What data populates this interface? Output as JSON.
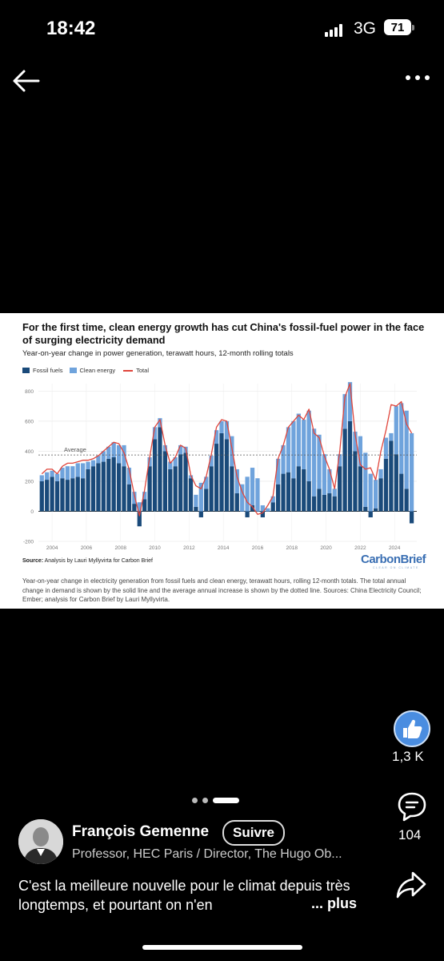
{
  "status_bar": {
    "time": "18:42",
    "network": "3G",
    "battery": "71"
  },
  "nav": {
    "back_icon": "back-arrow-icon",
    "more_icon": "more-dots-icon"
  },
  "post_image": {
    "title": "For the first time, clean energy growth has cut China's fossil-fuel power in the face of surging electricity demand",
    "subtitle": "Year-on-year change in power generation, terawatt hours, 12-month rolling totals",
    "legend": {
      "fossil": "Fossil fuels",
      "clean": "Clean energy",
      "total": "Total"
    },
    "colors": {
      "fossil": "#1a4a7a",
      "clean": "#6fa3dc",
      "total": "#e0453b"
    },
    "average_label": "Average",
    "source_label": "Source:",
    "source_text": "Analysis by Lauri Myllyvirta for Carbon Brief",
    "logo": "CarbonBrief",
    "logo_tagline": "CLEAR ON CLIMATE",
    "caption": "Year-on-year change in electricity generation from fossil fuels and clean energy, terawatt hours, rolling 12-month totals. The total annual change in demand is shown by the solid line and the average annual increase is shown by the dotted line. Sources: China Electricity Council; Ember; analysis for Carbon Brief by Lauri Myllyvirta."
  },
  "chart_data": {
    "type": "bar",
    "stacked": true,
    "title": "For the first time, clean energy growth has cut China's fossil-fuel power in the face of surging electricity demand",
    "subtitle": "Year-on-year change in power generation, terawatt hours, 12-month rolling totals",
    "ylim": [
      -200,
      850
    ],
    "yticks": [
      -200,
      0,
      200,
      400,
      600,
      800
    ],
    "xlim": [
      2003.2,
      2025.3
    ],
    "xticks": [
      2004,
      2006,
      2008,
      2010,
      2012,
      2014,
      2016,
      2018,
      2020,
      2022,
      2024
    ],
    "grid": true,
    "legend_position": "top-left",
    "average": 375,
    "x": [
      2003.4,
      2003.7,
      2004.0,
      2004.3,
      2004.6,
      2004.9,
      2005.2,
      2005.5,
      2005.8,
      2006.1,
      2006.4,
      2006.7,
      2007.0,
      2007.3,
      2007.6,
      2007.9,
      2008.2,
      2008.5,
      2008.8,
      2009.1,
      2009.4,
      2009.7,
      2010.0,
      2010.3,
      2010.6,
      2010.9,
      2011.2,
      2011.5,
      2011.8,
      2012.1,
      2012.4,
      2012.7,
      2013.0,
      2013.3,
      2013.6,
      2013.9,
      2014.2,
      2014.5,
      2014.8,
      2015.1,
      2015.4,
      2015.7,
      2016.0,
      2016.3,
      2016.6,
      2016.9,
      2017.2,
      2017.5,
      2017.8,
      2018.1,
      2018.4,
      2018.7,
      2019.0,
      2019.3,
      2019.6,
      2019.9,
      2020.2,
      2020.5,
      2020.8,
      2021.1,
      2021.4,
      2021.7,
      2022.0,
      2022.3,
      2022.6,
      2022.9,
      2023.2,
      2023.5,
      2023.8,
      2024.1,
      2024.4,
      2024.7,
      2025.0
    ],
    "series": [
      {
        "name": "Fossil fuels",
        "values": [
          200,
          210,
          230,
          200,
          220,
          210,
          220,
          230,
          220,
          280,
          300,
          320,
          330,
          350,
          360,
          320,
          300,
          180,
          50,
          -100,
          80,
          300,
          480,
          560,
          400,
          280,
          300,
          380,
          390,
          220,
          30,
          -40,
          150,
          300,
          450,
          520,
          480,
          300,
          120,
          0,
          -40,
          40,
          0,
          -40,
          0,
          60,
          180,
          250,
          260,
          220,
          300,
          280,
          200,
          100,
          150,
          110,
          120,
          100,
          300,
          550,
          600,
          400,
          300,
          30,
          -40,
          20,
          220,
          350,
          470,
          380,
          250,
          150,
          -80
        ]
      },
      {
        "name": "Clean energy",
        "values": [
          40,
          50,
          40,
          50,
          70,
          90,
          80,
          90,
          100,
          50,
          40,
          50,
          70,
          80,
          100,
          120,
          140,
          110,
          80,
          60,
          50,
          60,
          80,
          60,
          40,
          50,
          60,
          60,
          40,
          20,
          80,
          190,
          80,
          70,
          90,
          80,
          120,
          200,
          160,
          180,
          230,
          250,
          220,
          40,
          20,
          40,
          170,
          190,
          300,
          380,
          350,
          330,
          470,
          450,
          360,
          270,
          160,
          50,
          80,
          230,
          260,
          130,
          200,
          360,
          250,
          190,
          60,
          140,
          50,
          320,
          470,
          520,
          520
        ]
      }
    ],
    "total": [
      250,
      280,
      280,
      250,
      300,
      320,
      320,
      330,
      340,
      340,
      350,
      370,
      400,
      430,
      460,
      450,
      390,
      280,
      110,
      -30,
      140,
      360,
      560,
      610,
      440,
      320,
      360,
      440,
      420,
      240,
      170,
      150,
      230,
      380,
      560,
      610,
      600,
      420,
      230,
      130,
      60,
      30,
      -20,
      -10,
      40,
      100,
      350,
      440,
      560,
      600,
      640,
      610,
      680,
      520,
      490,
      370,
      280,
      150,
      400,
      760,
      850,
      510,
      310,
      280,
      290,
      210,
      400,
      540,
      710,
      700,
      730,
      580,
      520
    ]
  },
  "actions": {
    "likes": "1,3 K",
    "comments": "104"
  },
  "pager": {
    "count": 3,
    "active": 2
  },
  "author": {
    "name": "François Gemenne",
    "follow_label": "Suivre",
    "title": "Professor, HEC Paris / Director, The Hugo Ob..."
  },
  "post": {
    "text": "C'est la meilleure nouvelle pour le climat depuis très longtemps, et pourtant on n'en",
    "more_label": "... plus"
  }
}
